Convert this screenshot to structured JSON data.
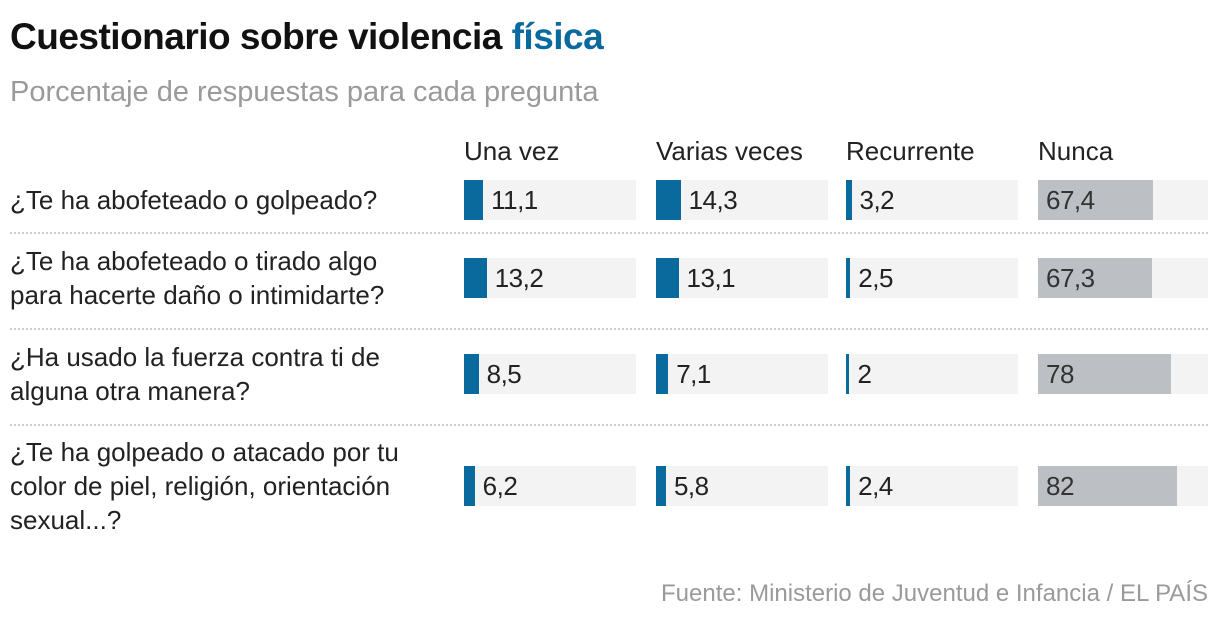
{
  "title": "Cuestionario sobre violencia",
  "title_accent": "física",
  "subtitle": "Porcentaje de respuestas para cada pregunta",
  "footer": "Fuente: Ministerio de Juventud e Infancia / EL PAÍS",
  "colors": {
    "accent": "#0a6a9e",
    "nunca": "#bcc0c4",
    "track": "#f3f3f3"
  },
  "chart_data": {
    "type": "bar",
    "categories": [
      "Una vez",
      "Varias veces",
      "Recurrente",
      "Nunca"
    ],
    "xlim": [
      0,
      100
    ],
    "rows": [
      {
        "question": [
          "¿Te ha abofeteado o golpeado?"
        ],
        "values": [
          11.1,
          14.3,
          3.2,
          67.4
        ],
        "labels": [
          "11,1",
          "14,3",
          "3,2",
          "67,4"
        ]
      },
      {
        "question": [
          "¿Te ha abofeteado o tirado algo",
          "para hacerte daño o intimidarte?"
        ],
        "values": [
          13.2,
          13.1,
          2.5,
          67.3
        ],
        "labels": [
          "13,2",
          "13,1",
          "2,5",
          "67,3"
        ]
      },
      {
        "question": [
          "¿Ha usado la fuerza contra ti de",
          "alguna otra manera?"
        ],
        "values": [
          8.5,
          7.1,
          2,
          78
        ],
        "labels": [
          "8,5",
          "7,1",
          "2",
          "78"
        ]
      },
      {
        "question": [
          "¿Te ha golpeado o atacado por tu",
          "color de piel, religión, orientación",
          "sexual...?"
        ],
        "values": [
          6.2,
          5.8,
          2.4,
          82
        ],
        "labels": [
          "6,2",
          "5,8",
          "2,4",
          "82"
        ]
      }
    ]
  }
}
